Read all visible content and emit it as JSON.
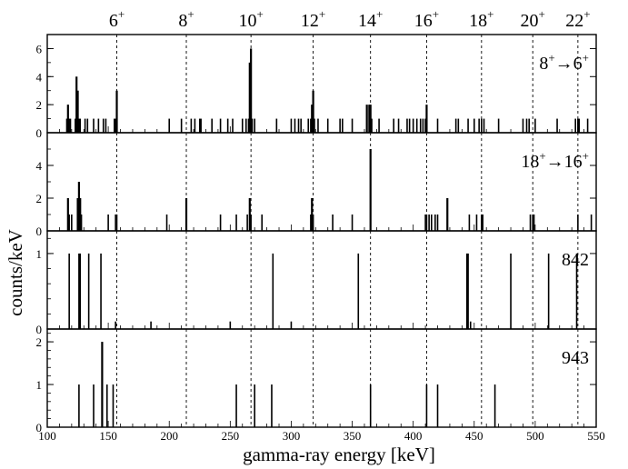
{
  "chart_data": {
    "type": "bar",
    "x_range": [
      100,
      550
    ],
    "x_ticks": [
      "100",
      "150",
      "200",
      "250",
      "300",
      "350",
      "400",
      "450",
      "500",
      "550"
    ],
    "xlabel": "gamma-ray energy [keV]",
    "ylabel": "counts/keV",
    "grid": false,
    "level_markers": [
      {
        "energy": 157,
        "spin": "6",
        "parity": "+"
      },
      {
        "energy": 214,
        "spin": "8",
        "parity": "+"
      },
      {
        "energy": 267,
        "spin": "10",
        "parity": "+"
      },
      {
        "energy": 318,
        "spin": "12",
        "parity": "+"
      },
      {
        "energy": 365,
        "spin": "14",
        "parity": "+"
      },
      {
        "energy": 411,
        "spin": "16",
        "parity": "+"
      },
      {
        "energy": 456,
        "spin": "18",
        "parity": "+"
      },
      {
        "energy": 498,
        "spin": "20",
        "parity": "+"
      },
      {
        "energy": 535,
        "spin": "22",
        "parity": "+"
      }
    ],
    "panels": [
      {
        "label_parts": {
          "a": "8",
          "a_sup": "+",
          "b": "6",
          "b_sup": "+"
        },
        "ylim": [
          0,
          7
        ],
        "yticks": [
          "0",
          "2",
          "4",
          "6"
        ],
        "bars": [
          [
            116,
            1
          ],
          [
            117,
            2
          ],
          [
            118,
            1
          ],
          [
            119,
            1
          ],
          [
            123,
            1
          ],
          [
            124,
            4
          ],
          [
            125,
            3
          ],
          [
            126,
            1
          ],
          [
            127,
            1
          ],
          [
            131,
            1
          ],
          [
            133,
            1
          ],
          [
            138,
            1
          ],
          [
            142,
            1
          ],
          [
            146,
            1
          ],
          [
            148,
            1
          ],
          [
            155,
            1
          ],
          [
            156,
            1
          ],
          [
            157,
            3
          ],
          [
            200,
            1
          ],
          [
            210,
            1
          ],
          [
            218,
            1
          ],
          [
            221,
            1
          ],
          [
            225,
            1
          ],
          [
            226,
            1
          ],
          [
            235,
            1
          ],
          [
            242,
            1
          ],
          [
            248,
            1
          ],
          [
            252,
            1
          ],
          [
            260,
            1
          ],
          [
            263,
            1
          ],
          [
            265,
            1
          ],
          [
            266,
            5
          ],
          [
            267,
            6
          ],
          [
            268,
            1
          ],
          [
            270,
            1
          ],
          [
            288,
            1
          ],
          [
            300,
            1
          ],
          [
            303,
            1
          ],
          [
            306,
            1
          ],
          [
            308,
            1
          ],
          [
            314,
            1
          ],
          [
            316,
            1
          ],
          [
            317,
            2
          ],
          [
            318,
            3
          ],
          [
            319,
            1
          ],
          [
            322,
            1
          ],
          [
            330,
            1
          ],
          [
            340,
            1
          ],
          [
            342,
            1
          ],
          [
            350,
            1
          ],
          [
            362,
            2
          ],
          [
            364,
            2
          ],
          [
            365,
            2
          ],
          [
            366,
            1
          ],
          [
            372,
            1
          ],
          [
            384,
            1
          ],
          [
            388,
            1
          ],
          [
            395,
            1
          ],
          [
            397,
            1
          ],
          [
            400,
            1
          ],
          [
            403,
            1
          ],
          [
            406,
            1
          ],
          [
            408,
            1
          ],
          [
            410,
            1
          ],
          [
            411,
            2
          ],
          [
            420,
            1
          ],
          [
            435,
            1
          ],
          [
            437,
            1
          ],
          [
            445,
            1
          ],
          [
            450,
            1
          ],
          [
            454,
            1
          ],
          [
            456,
            1
          ],
          [
            458,
            1
          ],
          [
            470,
            1
          ],
          [
            490,
            1
          ],
          [
            493,
            1
          ],
          [
            495,
            1
          ],
          [
            500,
            1
          ],
          [
            518,
            1
          ],
          [
            533,
            1
          ],
          [
            535,
            1
          ],
          [
            536,
            1
          ],
          [
            543,
            1
          ]
        ]
      },
      {
        "label_parts": {
          "a": "18",
          "a_sup": "+",
          "b": "16",
          "b_sup": "+"
        },
        "ylim": [
          0,
          6
        ],
        "yticks": [
          "0",
          "2",
          "4"
        ],
        "bars": [
          [
            117,
            2
          ],
          [
            118,
            1
          ],
          [
            120,
            1
          ],
          [
            125,
            2
          ],
          [
            126,
            3
          ],
          [
            127,
            2
          ],
          [
            128,
            1
          ],
          [
            150,
            1
          ],
          [
            156,
            1
          ],
          [
            157,
            1
          ],
          [
            198,
            1
          ],
          [
            214,
            2
          ],
          [
            242,
            1
          ],
          [
            255,
            1
          ],
          [
            264,
            1
          ],
          [
            266,
            2
          ],
          [
            267,
            1
          ],
          [
            276,
            1
          ],
          [
            316,
            1
          ],
          [
            317,
            2
          ],
          [
            318,
            1
          ],
          [
            334,
            1
          ],
          [
            350,
            1
          ],
          [
            365,
            5
          ],
          [
            410,
            1
          ],
          [
            411,
            1
          ],
          [
            413,
            1
          ],
          [
            415,
            1
          ],
          [
            418,
            1
          ],
          [
            420,
            1
          ],
          [
            428,
            2
          ],
          [
            446,
            1
          ],
          [
            452,
            1
          ],
          [
            456,
            1
          ],
          [
            457,
            1
          ],
          [
            496,
            1
          ],
          [
            498,
            1
          ],
          [
            499,
            1
          ],
          [
            535,
            1
          ],
          [
            546,
            1
          ]
        ]
      },
      {
        "label_parts": {
          "a": "842"
        },
        "ylim": [
          0,
          1.3
        ],
        "yticks": [
          "0",
          "1"
        ],
        "bars": [
          [
            118,
            1
          ],
          [
            126,
            1
          ],
          [
            127,
            1
          ],
          [
            134,
            1
          ],
          [
            144,
            1
          ],
          [
            156,
            0.1
          ],
          [
            185,
            0.1
          ],
          [
            250,
            0.1
          ],
          [
            285,
            1
          ],
          [
            300,
            0.1
          ],
          [
            355,
            1
          ],
          [
            444,
            1
          ],
          [
            445,
            1
          ],
          [
            447,
            0.1
          ],
          [
            480,
            1
          ],
          [
            511,
            1
          ],
          [
            534,
            1
          ]
        ]
      },
      {
        "label_parts": {
          "a": "943"
        },
        "ylim": [
          0,
          2.3
        ],
        "yticks": [
          "0",
          "1",
          "2"
        ],
        "bars": [
          [
            126,
            1
          ],
          [
            138,
            1
          ],
          [
            145,
            2
          ],
          [
            149,
            1
          ],
          [
            154,
            1
          ],
          [
            255,
            1
          ],
          [
            270,
            1
          ],
          [
            284,
            1
          ],
          [
            365,
            1
          ],
          [
            411,
            1
          ],
          [
            420,
            1
          ],
          [
            467,
            1
          ]
        ]
      }
    ]
  }
}
